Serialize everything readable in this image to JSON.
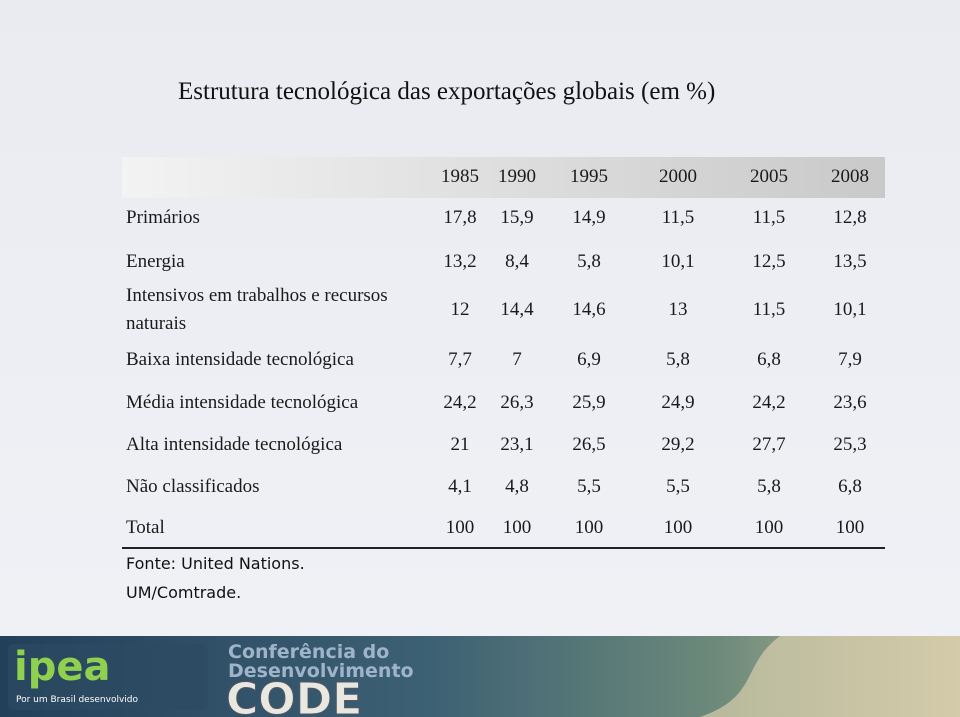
{
  "title": "Estrutura tecnológica das exportações globais (em %)",
  "table": {
    "columns": [
      "1985",
      "1990",
      "1995",
      "2000",
      "2005",
      "2008"
    ],
    "rows": [
      {
        "label": "Primários",
        "values": [
          "17,8",
          "15,9",
          "14,9",
          "11,5",
          "11,5",
          "12,8"
        ]
      },
      {
        "label": "Energia",
        "values": [
          "13,2",
          "8,4",
          "5,8",
          "10,1",
          "12,5",
          "13,5"
        ]
      },
      {
        "label": "Intensivos em trabalhos e recursos naturais",
        "values": [
          "12",
          "14,4",
          "14,6",
          "13",
          "11,5",
          "10,1"
        ]
      },
      {
        "label": "Baixa intensidade tecnológica",
        "values": [
          "7,7",
          "7",
          "6,9",
          "5,8",
          "6,8",
          "7,9"
        ]
      },
      {
        "label": "Média intensidade tecnológica",
        "values": [
          "24,2",
          "26,3",
          "25,9",
          "24,9",
          "24,2",
          "23,6"
        ]
      },
      {
        "label": "Alta intensidade tecnológica",
        "values": [
          "21",
          "23,1",
          "26,5",
          "29,2",
          "27,7",
          "25,3"
        ]
      },
      {
        "label": "Não classificados",
        "values": [
          "4,1",
          "4,8",
          "5,5",
          "5,5",
          "5,8",
          "6,8"
        ]
      },
      {
        "label": "Total",
        "values": [
          "100",
          "100",
          "100",
          "100",
          "100",
          "100"
        ]
      }
    ]
  },
  "source": [
    "Fonte: United Nations.",
    "UM/Comtrade."
  ],
  "footer": {
    "logo": "ipea",
    "tagline": "Por um Brasil desenvolvido",
    "conference": [
      "Conferência do",
      "Desenvolvimento"
    ],
    "acronym": "CODE"
  }
}
